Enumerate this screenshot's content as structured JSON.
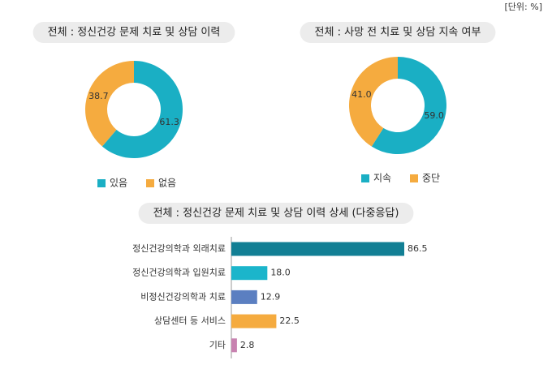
{
  "unit": "[단위: %]",
  "chart_data": [
    {
      "type": "pie",
      "donut": true,
      "title": "전체 : 정신건강 문제 치료 및 상담 이력",
      "categories": [
        "있음",
        "없음"
      ],
      "values": [
        61.3,
        38.7
      ],
      "colors": [
        "#1aafc4",
        "#f5ab3f"
      ]
    },
    {
      "type": "pie",
      "donut": true,
      "title": "전체 : 사망 전 치료 및 상담 지속 여부",
      "categories": [
        "지속",
        "중단"
      ],
      "values": [
        59.0,
        41.0
      ],
      "value_labels": [
        "59.0",
        "41.0"
      ],
      "colors": [
        "#1aafc4",
        "#f5ab3f"
      ]
    },
    {
      "type": "barh",
      "title": "전체 : 정신건강 문제 치료 및 상담 이력 상세 (다중응답)",
      "categories": [
        "정신건강의학과 외래치료",
        "정신건강의학과 입원치료",
        "비정신건강의학과 치료",
        "상담센터 등 서비스",
        "기타"
      ],
      "values": [
        86.5,
        18.0,
        12.9,
        22.5,
        2.8
      ],
      "value_labels": [
        "86.5",
        "18.0",
        "12.9",
        "22.5",
        "2.8"
      ],
      "colors": [
        "#127f94",
        "#1bb5cb",
        "#5b7fc1",
        "#f5ab3f",
        "#c882b0"
      ]
    }
  ]
}
